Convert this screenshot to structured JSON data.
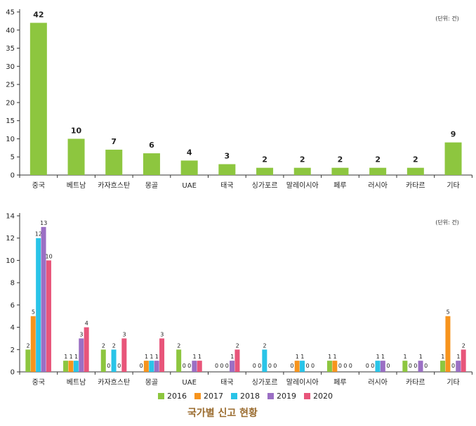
{
  "chart_data": [
    {
      "type": "bar",
      "unit_label": "(단위: 건)",
      "categories": [
        "중국",
        "베트남",
        "카자흐스탄",
        "몽골",
        "UAE",
        "태국",
        "싱가포르",
        "말레이시아",
        "페루",
        "러시아",
        "카타르",
        "기타"
      ],
      "values": [
        42,
        10,
        7,
        6,
        4,
        3,
        2,
        2,
        2,
        2,
        2,
        9
      ],
      "ylim": [
        0,
        45
      ],
      "yticks": [
        0,
        5,
        10,
        15,
        20,
        25,
        30,
        35,
        40,
        45
      ],
      "color": "#8dc63f",
      "grid": false
    },
    {
      "type": "bar",
      "unit_label": "(단위: 건)",
      "categories": [
        "중국",
        "베트남",
        "카자흐스탄",
        "몽골",
        "UAE",
        "태국",
        "싱가포르",
        "말레이시아",
        "페루",
        "러시아",
        "카타르",
        "기타"
      ],
      "series": [
        {
          "name": "2016",
          "color": "#8dc63f",
          "values": [
            2,
            1,
            2,
            0,
            2,
            0,
            0,
            0,
            1,
            0,
            1,
            1
          ]
        },
        {
          "name": "2017",
          "color": "#f7941d",
          "values": [
            5,
            1,
            0,
            1,
            0,
            0,
            0,
            1,
            1,
            0,
            0,
            5
          ]
        },
        {
          "name": "2018",
          "color": "#29c4e8",
          "values": [
            12,
            1,
            2,
            1,
            0,
            0,
            2,
            1,
            0,
            1,
            0,
            0
          ]
        },
        {
          "name": "2019",
          "color": "#9b6fc4",
          "values": [
            13,
            3,
            0,
            1,
            1,
            1,
            0,
            0,
            0,
            1,
            1,
            1
          ]
        },
        {
          "name": "2020",
          "color": "#e8557a",
          "values": [
            10,
            4,
            3,
            3,
            1,
            2,
            0,
            0,
            0,
            0,
            0,
            2
          ]
        }
      ],
      "ylim": [
        0,
        14
      ],
      "yticks": [
        0,
        2,
        4,
        6,
        8,
        10,
        12,
        14
      ],
      "grid": false,
      "legend_position": "bottom"
    }
  ],
  "footer_title": "국가별 신고 현황"
}
